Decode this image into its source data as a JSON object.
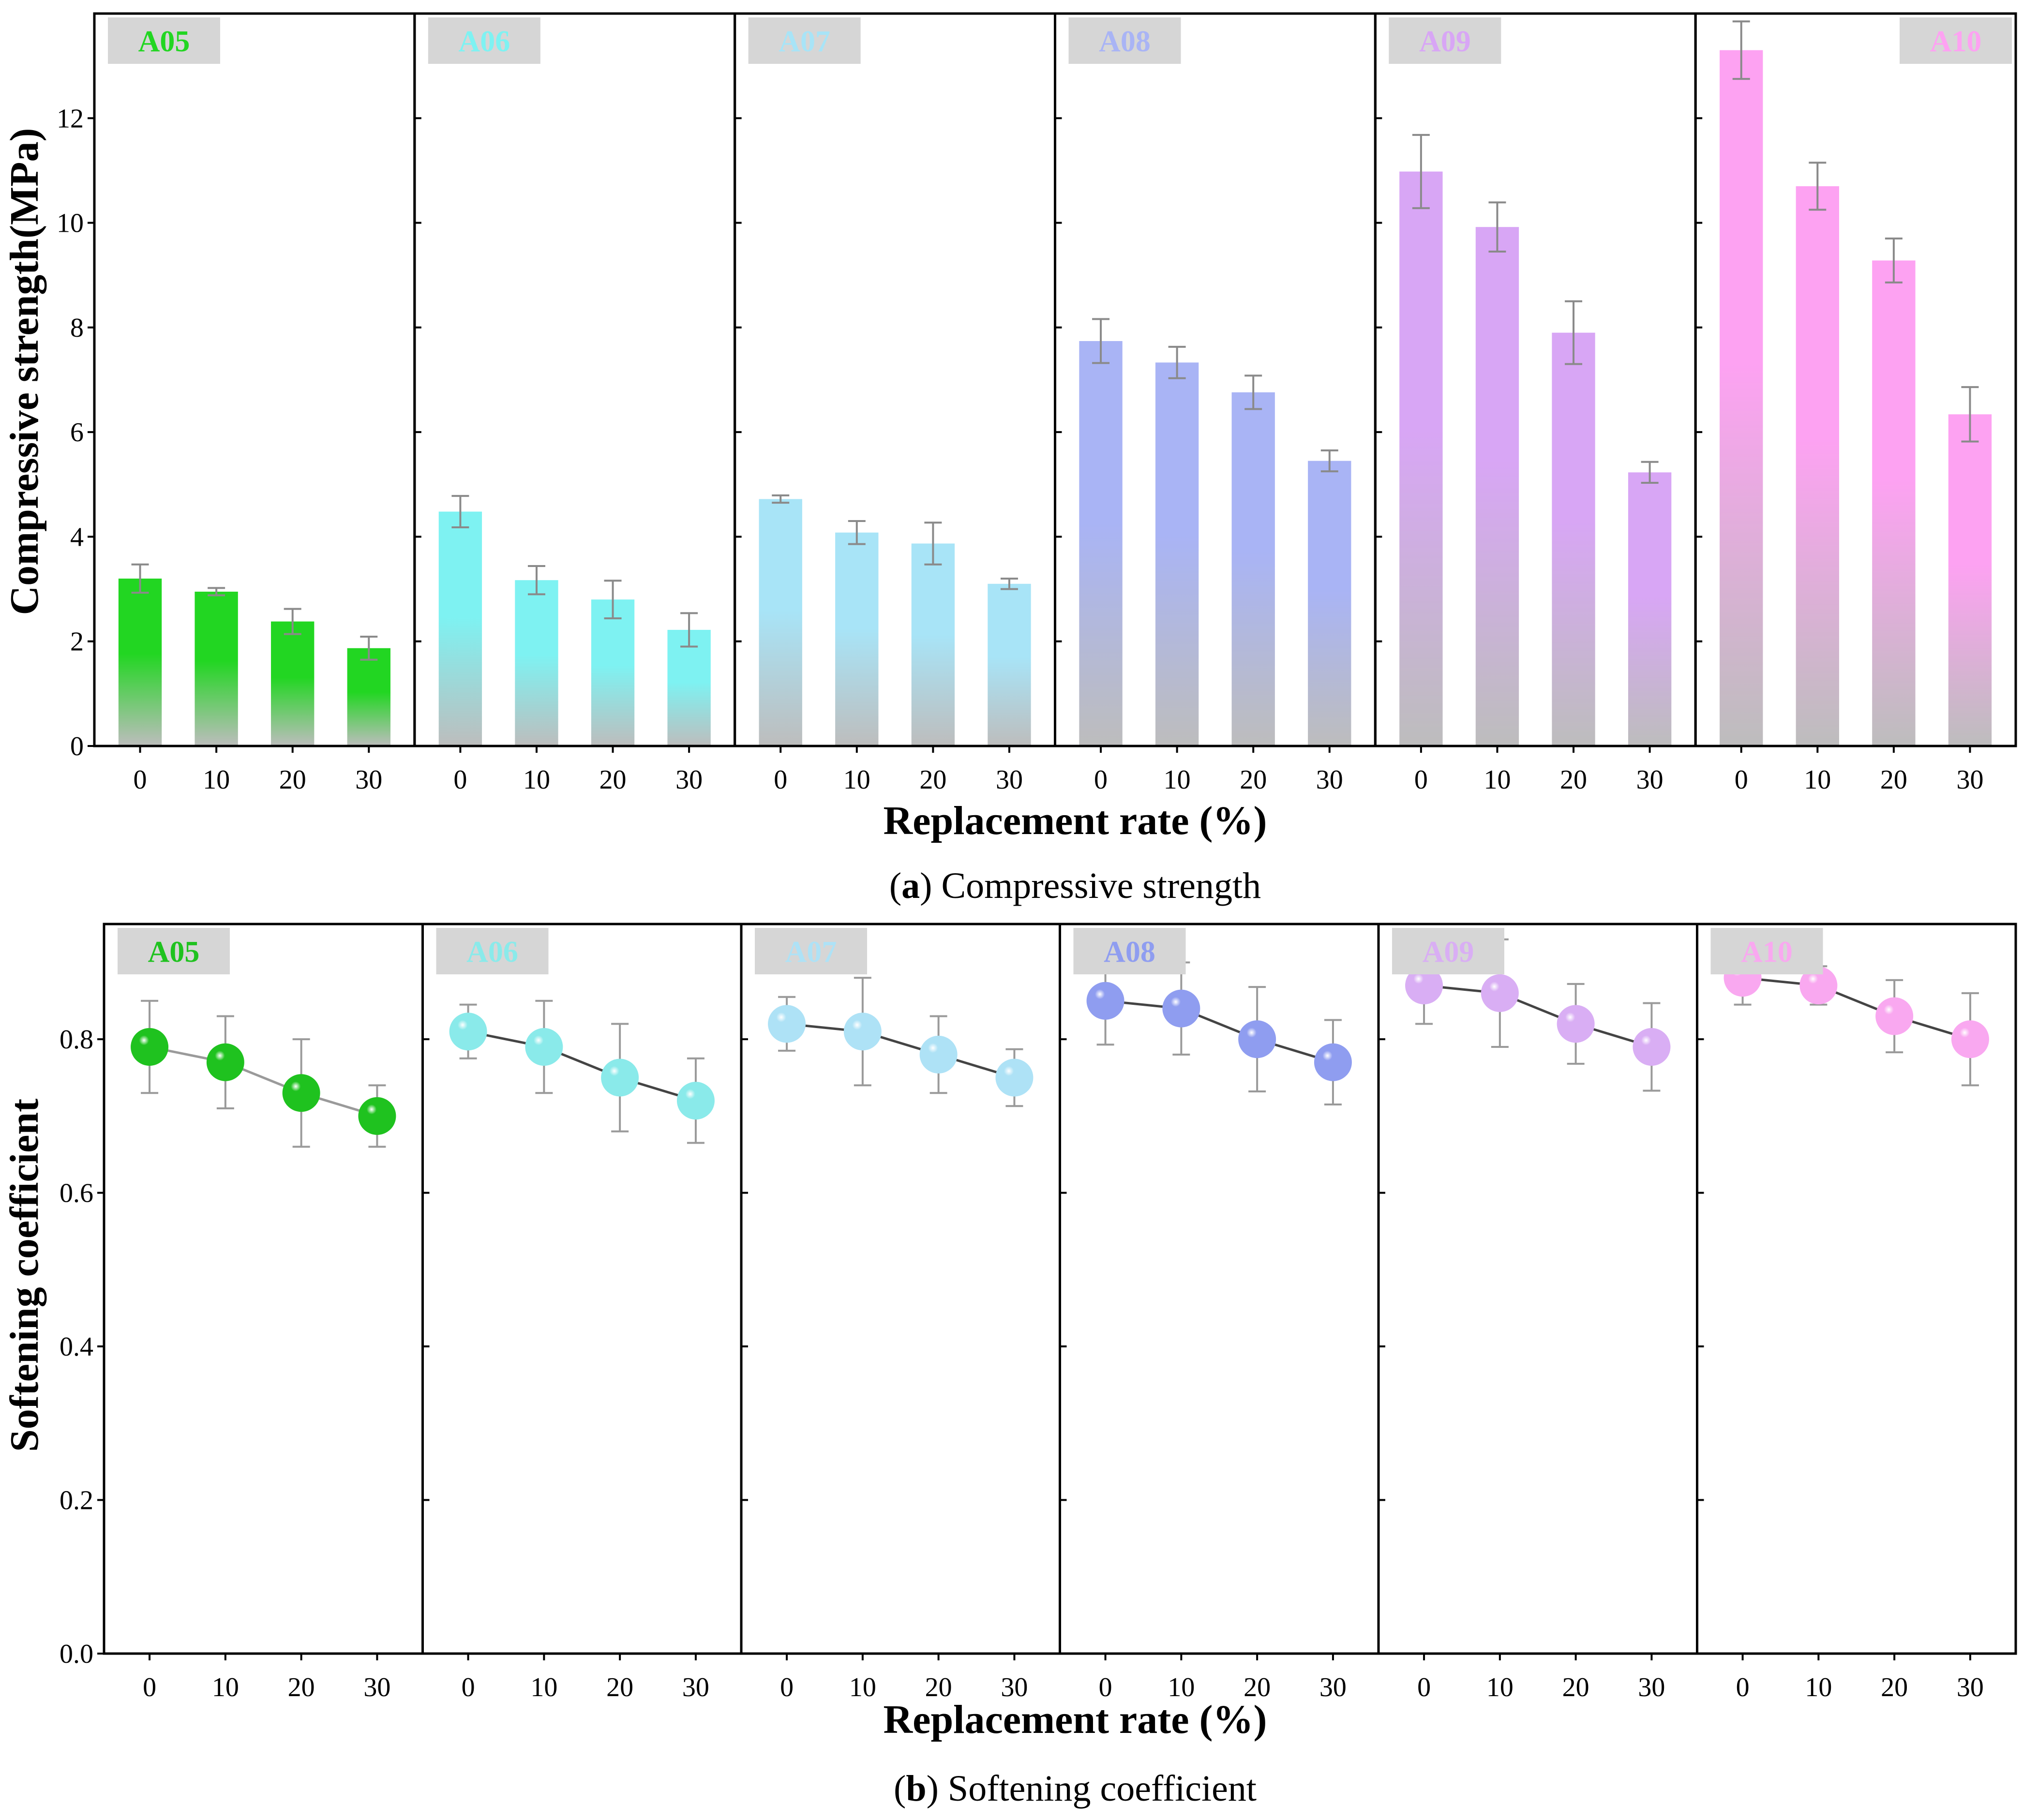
{
  "chart_data": [
    {
      "id": "a",
      "type": "bar",
      "caption_letter": "a",
      "caption_text": " Compressive strength",
      "ylabel": "Compressive strength(MPa)",
      "xlabel": "Replacement rate (%)",
      "ylim": [
        0,
        14
      ],
      "yticks": [
        "0",
        "2",
        "4",
        "6",
        "8",
        "10",
        "12"
      ],
      "categories": [
        "0",
        "10",
        "20",
        "30"
      ],
      "series": [
        {
          "name": "A05",
          "color": "#22d622",
          "values": [
            3.2,
            2.95,
            2.38,
            1.87
          ],
          "errors": [
            0.27,
            0.07,
            0.24,
            0.22
          ]
        },
        {
          "name": "A06",
          "color": "#7ef2f2",
          "values": [
            4.48,
            3.17,
            2.8,
            2.22
          ],
          "errors": [
            0.3,
            0.27,
            0.36,
            0.32
          ]
        },
        {
          "name": "A07",
          "color": "#a8e4f7",
          "values": [
            4.72,
            4.08,
            3.87,
            3.1
          ],
          "errors": [
            0.07,
            0.22,
            0.4,
            0.1
          ]
        },
        {
          "name": "A08",
          "color": "#a9b4f5",
          "values": [
            7.74,
            7.33,
            6.76,
            5.45
          ],
          "errors": [
            0.42,
            0.3,
            0.32,
            0.2
          ]
        },
        {
          "name": "A09",
          "color": "#d8a6f5",
          "values": [
            10.98,
            9.92,
            7.9,
            5.23
          ],
          "errors": [
            0.7,
            0.47,
            0.6,
            0.2
          ]
        },
        {
          "name": "A10",
          "color": "#fda2f2",
          "values": [
            13.3,
            10.7,
            9.28,
            6.34
          ],
          "errors": [
            0.55,
            0.45,
            0.42,
            0.52
          ]
        }
      ]
    },
    {
      "id": "b",
      "type": "line",
      "caption_letter": "b",
      "caption_text": " Softening coefficient",
      "ylabel": "Softening coefficient",
      "xlabel": "Replacement rate (%)",
      "ylim": [
        0,
        0.95
      ],
      "yticks": [
        "0.0",
        "0.2",
        "0.4",
        "0.6",
        "0.8"
      ],
      "categories": [
        "0",
        "10",
        "20",
        "30"
      ],
      "series": [
        {
          "name": "A05",
          "color": "#1fc21f",
          "values": [
            0.79,
            0.77,
            0.73,
            0.7
          ],
          "errors": [
            0.06,
            0.06,
            0.07,
            0.04
          ]
        },
        {
          "name": "A06",
          "color": "#8aeaea",
          "values": [
            0.81,
            0.79,
            0.75,
            0.72
          ],
          "errors": [
            0.035,
            0.06,
            0.07,
            0.055
          ]
        },
        {
          "name": "A07",
          "color": "#aee2f6",
          "values": [
            0.82,
            0.81,
            0.78,
            0.75
          ],
          "errors": [
            0.035,
            0.07,
            0.05,
            0.037
          ]
        },
        {
          "name": "A08",
          "color": "#8f9df0",
          "values": [
            0.85,
            0.84,
            0.8,
            0.77
          ],
          "errors": [
            0.057,
            0.06,
            0.068,
            0.055
          ]
        },
        {
          "name": "A09",
          "color": "#d9aef4",
          "values": [
            0.87,
            0.86,
            0.82,
            0.79
          ],
          "errors": [
            0.05,
            0.07,
            0.052,
            0.057
          ]
        },
        {
          "name": "A10",
          "color": "#f9a8f0",
          "values": [
            0.88,
            0.87,
            0.83,
            0.8
          ],
          "errors": [
            0.035,
            0.025,
            0.047,
            0.06
          ]
        }
      ]
    }
  ]
}
